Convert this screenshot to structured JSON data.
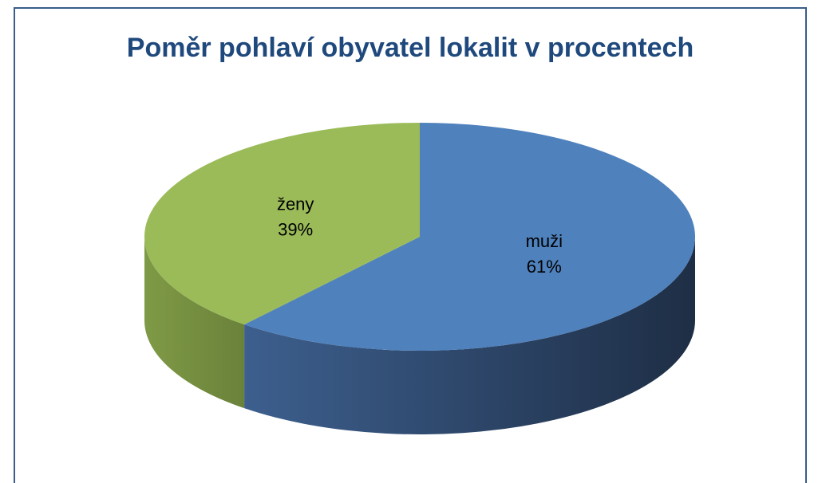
{
  "chart_data": {
    "type": "pie",
    "title": "Poměr pohlaví obyvatel lokalit v procentech",
    "categories": [
      "muži",
      "ženy"
    ],
    "values": [
      61,
      39
    ],
    "value_labels": [
      "61%",
      "39%"
    ],
    "colors": [
      "#4f81bd",
      "#9bbb59"
    ],
    "side_colors": [
      [
        "#3d5f8e",
        "#1e2e45"
      ],
      [
        "#7f9a46",
        "#6a823a"
      ]
    ]
  }
}
